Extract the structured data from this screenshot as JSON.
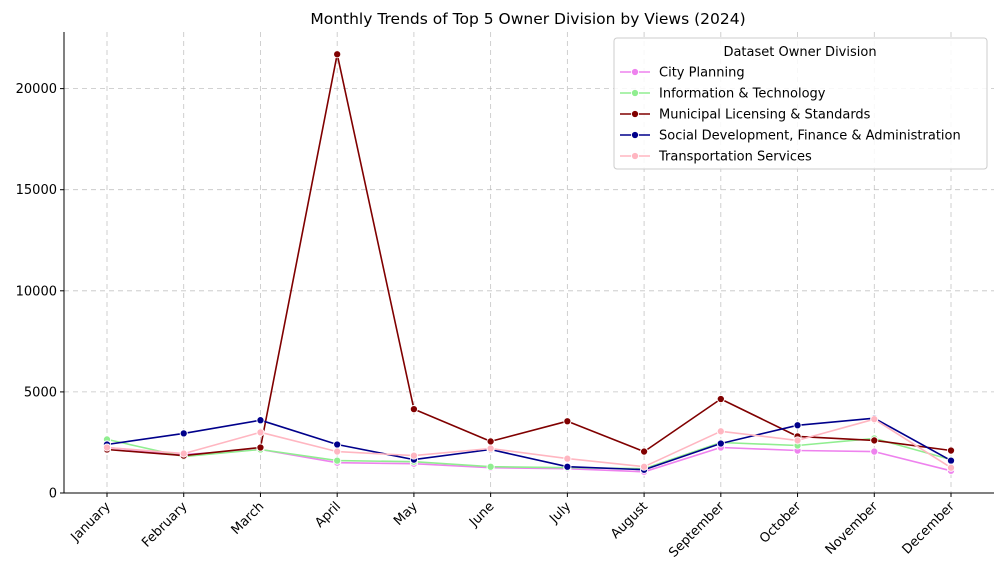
{
  "chart_data": {
    "type": "line",
    "title": "Monthly Trends of Top 5 Owner Division by Views (2024)",
    "xlabel": "",
    "ylabel": "",
    "categories": [
      "January",
      "February",
      "March",
      "April",
      "May",
      "June",
      "July",
      "August",
      "September",
      "October",
      "November",
      "December"
    ],
    "ylim": [
      0,
      22800
    ],
    "yticks": [
      0,
      5000,
      10000,
      15000,
      20000
    ],
    "grid": true,
    "legend": {
      "title": "Dataset Owner Division",
      "placement": "top-right"
    },
    "series": [
      {
        "name": "City Planning",
        "color": "#ee82ee",
        "values": [
          2250,
          1900,
          2150,
          1500,
          1450,
          1250,
          1200,
          1050,
          2250,
          2100,
          2050,
          1100
        ]
      },
      {
        "name": "Information & Technology",
        "color": "#90ee90",
        "values": [
          2650,
          1800,
          2150,
          1600,
          1550,
          1300,
          1250,
          1200,
          2500,
          2350,
          2700,
          1650
        ]
      },
      {
        "name": "Municipal Licensing & Standards",
        "color": "#800000",
        "values": [
          2150,
          1850,
          2250,
          21700,
          4150,
          2550,
          3550,
          2050,
          4650,
          2800,
          2600,
          2100
        ]
      },
      {
        "name": "Social Development, Finance & Administration",
        "color": "#00008b",
        "values": [
          2400,
          2950,
          3600,
          2400,
          1650,
          2150,
          1300,
          1150,
          2450,
          3350,
          3700,
          1600
        ]
      },
      {
        "name": "Transportation Services",
        "color": "#ffb6c1",
        "values": [
          2250,
          1950,
          3000,
          2050,
          1850,
          2200,
          1700,
          1300,
          3050,
          2600,
          3650,
          1250
        ]
      }
    ]
  }
}
